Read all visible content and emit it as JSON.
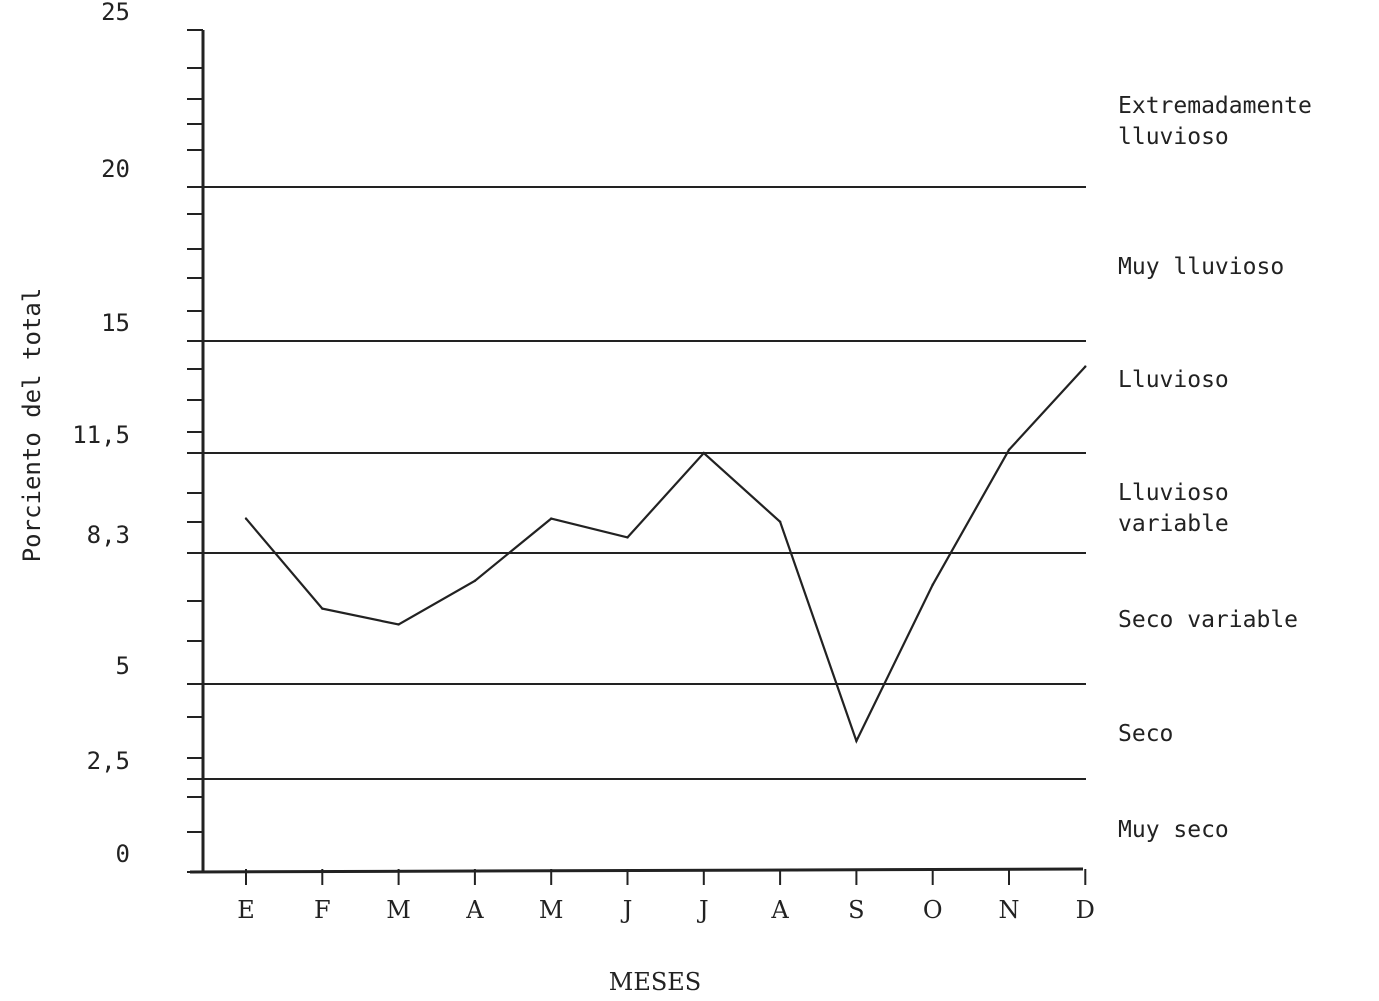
{
  "chart_data": {
    "type": "line",
    "title": "",
    "xlabel": "MESES",
    "ylabel": "Porciento del total",
    "ylim": [
      0,
      25
    ],
    "y_tick_labels": [
      "0",
      "2,5",
      "5",
      "8,3",
      "11,5",
      "15",
      "20",
      "25"
    ],
    "y_tick_values": [
      0,
      2.5,
      5,
      8.3,
      11.5,
      15,
      20,
      25
    ],
    "categories": [
      "E",
      "F",
      "M",
      "A",
      "M",
      "J",
      "J",
      "A",
      "S",
      "O",
      "N",
      "D"
    ],
    "series": [
      {
        "values": [
          9.4,
          6.9,
          6.5,
          7.6,
          9.4,
          8.8,
          11.5,
          9.3,
          3.5,
          7.5,
          11.6,
          14.2
        ]
      }
    ],
    "thresholds": [
      2.5,
      5,
      8.3,
      11.5,
      15,
      20
    ],
    "bands": [
      {
        "label": "Extremadamente\nlluvioso",
        "low": 20,
        "high": 25
      },
      {
        "label": "Muy lluvioso",
        "low": 15,
        "high": 20
      },
      {
        "label": "Lluvioso",
        "low": 11.5,
        "high": 15
      },
      {
        "label": "Lluvioso\nvariable",
        "low": 8.3,
        "high": 11.5
      },
      {
        "label": "Seco variable",
        "low": 5,
        "high": 8.3
      },
      {
        "label": "Seco",
        "low": 2.5,
        "high": 5
      },
      {
        "label": "Muy seco",
        "low": 0,
        "high": 2.5
      }
    ],
    "grid": false,
    "legend": "none",
    "line_color": "#222222"
  }
}
